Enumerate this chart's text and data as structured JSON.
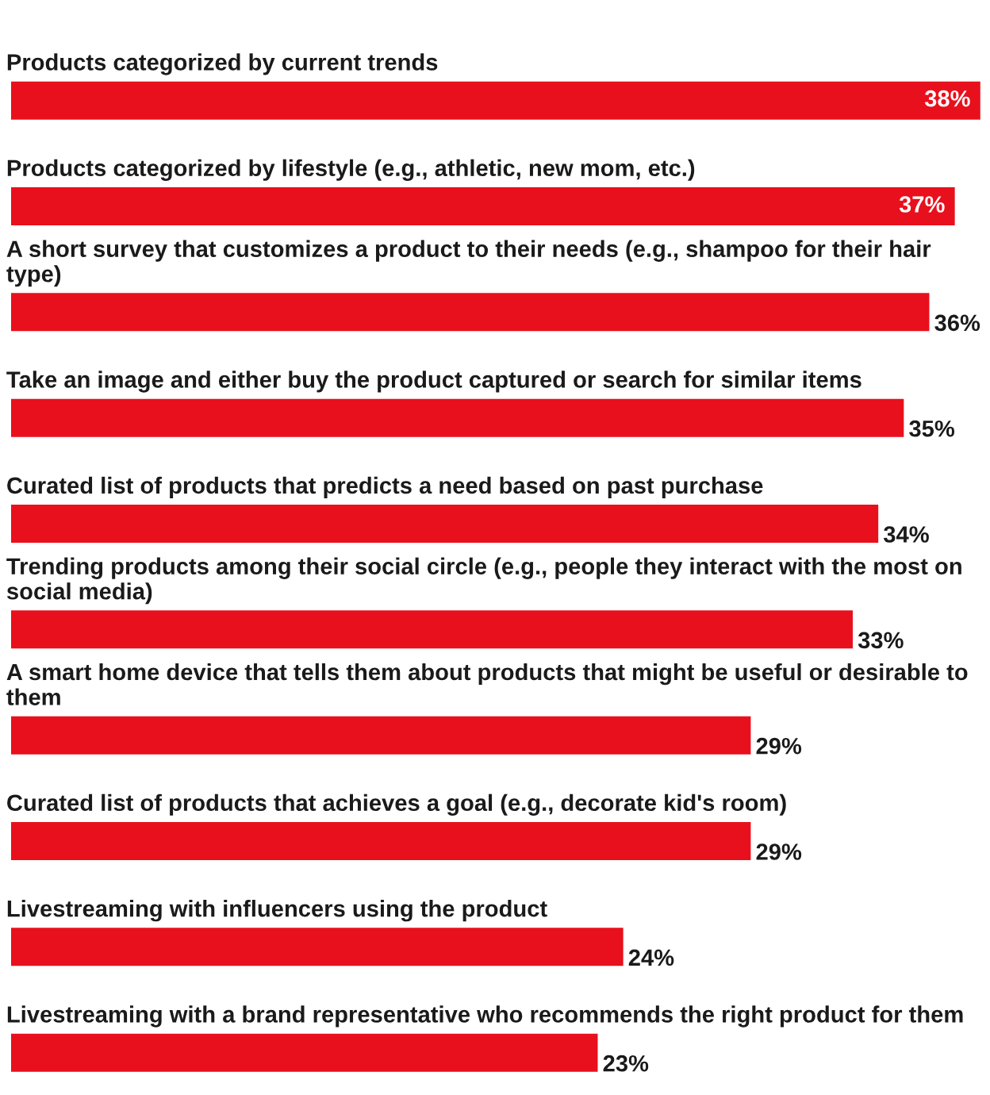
{
  "chart_data": {
    "type": "bar",
    "orientation": "horizontal",
    "categories": [
      "Products categorized by current trends",
      "Products categorized by lifestyle (e.g., athletic, new mom, etc.)",
      "A short survey that customizes a product to their needs (e.g., shampoo for their hair type)",
      "Take an image and either buy the product captured or search for similar items",
      "Curated list of products that predicts a need based on past purchase",
      "Trending products among their social circle (e.g., people they interact with the most on social media)",
      "A smart home device that tells them about products that might be useful or desirable to them",
      "Curated list of products that achieves a goal (e.g., decorate kid's room)",
      "Livestreaming with influencers using the product",
      "Livestreaming with a brand representative who recommends the right product for them"
    ],
    "values": [
      38,
      37,
      36,
      35,
      34,
      33,
      29,
      29,
      24,
      23
    ],
    "value_labels": [
      "38%",
      "37%",
      "36%",
      "35%",
      "34%",
      "33%",
      "29%",
      "29%",
      "24%",
      "23%"
    ],
    "color": "#e8101c"
  }
}
